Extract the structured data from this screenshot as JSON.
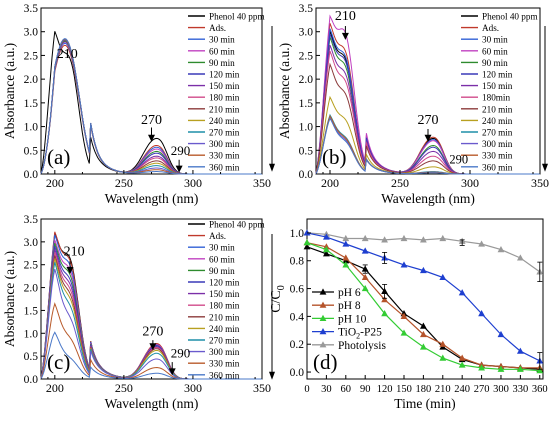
{
  "colors": {
    "phenol": "#000000",
    "ads": "#c0392b",
    "m30": "#2f5fd6",
    "m60": "#c040c0",
    "m90": "#2e8b2e",
    "m120": "#3a3ab8",
    "m150": "#7b2fa8",
    "m180": "#d04a8a",
    "m210": "#8b3a3a",
    "m240": "#b8a020",
    "m270": "#1f8fa8",
    "m300": "#6a5acd",
    "m330": "#b85a2a",
    "m360": "#4a78c8",
    "ph6": "#000000",
    "ph8": "#b5532a",
    "ph10": "#33cc33",
    "p25": "#1e3fd0",
    "photolysis": "#999999"
  },
  "chart_data": [
    {
      "panel": "(a)",
      "type": "line",
      "xlabel": "Wavelength (nm)",
      "ylabel": "Absorbance (a.u.)",
      "xlim": [
        190,
        350
      ],
      "ylim": [
        0,
        3.5
      ],
      "xticks": [
        "200",
        "250",
        "300",
        "350"
      ],
      "yticks": [
        "0.0",
        "0.5",
        "1.0",
        "1.5",
        "2.0",
        "2.5",
        "3.0",
        "3.5"
      ],
      "annotations": [
        "210",
        "270",
        "290"
      ],
      "series": [
        {
          "name": "Phenol 40 ppm",
          "color_key": "phenol",
          "shape": "phenol",
          "p": 2.8,
          "s": 2.25,
          "b": 0.6
        },
        {
          "name": "Ads.",
          "color_key": "ads",
          "shape": "dominant",
          "p": 3.1,
          "b": 0.48
        },
        {
          "name": "30 min",
          "color_key": "m30",
          "shape": "dominant",
          "p": 3.15,
          "b": 0.45
        },
        {
          "name": "60 min",
          "color_key": "m60",
          "shape": "dominant",
          "p": 3.18,
          "b": 0.42
        },
        {
          "name": "90 min",
          "color_key": "m90",
          "shape": "dominant",
          "p": 3.2,
          "b": 0.38
        },
        {
          "name": "120 min",
          "color_key": "m120",
          "shape": "dominant",
          "p": 3.22,
          "b": 0.35
        },
        {
          "name": "150 min",
          "color_key": "m150",
          "shape": "dominant",
          "p": 3.22,
          "b": 0.3
        },
        {
          "name": "180 min",
          "color_key": "m180",
          "shape": "dominant",
          "p": 3.23,
          "b": 0.27
        },
        {
          "name": "210 min",
          "color_key": "m210",
          "shape": "dominant",
          "p": 3.23,
          "b": 0.22
        },
        {
          "name": "240 min",
          "color_key": "m240",
          "shape": "dominant",
          "p": 3.24,
          "b": 0.18
        },
        {
          "name": "270 min",
          "color_key": "m270",
          "shape": "dominant",
          "p": 3.24,
          "b": 0.14
        },
        {
          "name": "300 min",
          "color_key": "m300",
          "shape": "dominant",
          "p": 3.25,
          "b": 0.1
        },
        {
          "name": "330 min",
          "color_key": "m330",
          "shape": "dominant",
          "p": 3.25,
          "b": 0.07
        },
        {
          "name": "360 min",
          "color_key": "m360",
          "shape": "dominant",
          "p": 3.26,
          "b": 0.04
        }
      ]
    },
    {
      "panel": "(b)",
      "type": "line",
      "xlabel": "Wavelength (nm)",
      "ylabel": "Absorbance (a.u.)",
      "xlim": [
        190,
        350
      ],
      "ylim": [
        0,
        3.5
      ],
      "xticks": [
        "200",
        "250",
        "300",
        "350"
      ],
      "yticks": [
        "0.0",
        "0.5",
        "1.0",
        "1.5",
        "2.0",
        "2.5",
        "3.0",
        "3.5"
      ],
      "annotations": [
        "210",
        "270",
        "290"
      ],
      "series": [
        {
          "name": "Phenol 40 ppm",
          "color_key": "phenol",
          "shape": "phenol",
          "p": 2.8,
          "s": 2.25,
          "b": 0.6
        },
        {
          "name": "Ads.",
          "color_key": "ads",
          "shape": "phenol",
          "p": 2.95,
          "s": 2.4,
          "b": 0.62
        },
        {
          "name": "30 min",
          "color_key": "m30",
          "shape": "phenol",
          "p": 2.85,
          "s": 2.3,
          "b": 0.58
        },
        {
          "name": "60 min",
          "color_key": "m60",
          "shape": "phenol",
          "p": 3.02,
          "s": 2.78,
          "b": 0.56
        },
        {
          "name": "90 min",
          "color_key": "m90",
          "shape": "phenol",
          "p": 2.7,
          "s": 2.1,
          "b": 0.48
        },
        {
          "name": "120 min",
          "color_key": "m120",
          "shape": "phenol",
          "p": 2.75,
          "s": 2.2,
          "b": 0.45
        },
        {
          "name": "150 min",
          "color_key": "m150",
          "shape": "phenol",
          "p": 2.55,
          "s": 1.95,
          "b": 0.38
        },
        {
          "name": "180min",
          "color_key": "m180",
          "shape": "phenol",
          "p": 2.45,
          "s": 1.8,
          "b": 0.3
        },
        {
          "name": "210 min",
          "color_key": "m210",
          "shape": "phenol",
          "p": 2.2,
          "s": 1.55,
          "b": 0.22
        },
        {
          "name": "240 min",
          "color_key": "m240",
          "shape": "phenol",
          "p": 1.55,
          "s": 1.05,
          "b": 0.12
        },
        {
          "name": "270 min",
          "color_key": "m270",
          "shape": "phenol",
          "p": 1.22,
          "s": 0.7,
          "b": 0.04
        },
        {
          "name": "300 min",
          "color_key": "m300",
          "shape": "phenol",
          "p": 1.18,
          "s": 0.65,
          "b": 0.03
        },
        {
          "name": "330 min",
          "color_key": "m330",
          "shape": "phenol",
          "p": 1.2,
          "s": 0.68,
          "b": 0.03
        },
        {
          "name": "360 min",
          "color_key": "m360",
          "shape": "phenol",
          "p": 1.16,
          "s": 0.62,
          "b": 0.02
        }
      ]
    },
    {
      "panel": "(c)",
      "type": "line",
      "xlabel": "Wavelength (nm)",
      "ylabel": "Absorbance (a.u.)",
      "xlim": [
        190,
        350
      ],
      "ylim": [
        0,
        3.5
      ],
      "xticks": [
        "200",
        "250",
        "300",
        "350"
      ],
      "yticks": [
        "0.0",
        "0.5",
        "1.0",
        "1.5",
        "2.0",
        "2.5",
        "3.0",
        "3.5"
      ],
      "annotations": [
        "210",
        "270",
        "290"
      ],
      "series": [
        {
          "name": "Phenol 40 ppm",
          "color_key": "phenol",
          "shape": "phenol",
          "p": 2.95,
          "s": 2.45,
          "b": 0.6
        },
        {
          "name": "Ads.",
          "color_key": "ads",
          "shape": "phenol",
          "p": 3.0,
          "s": 2.4,
          "b": 0.62
        },
        {
          "name": "30 min",
          "color_key": "m30",
          "shape": "phenol",
          "p": 2.95,
          "s": 2.3,
          "b": 0.6
        },
        {
          "name": "60 min",
          "color_key": "m60",
          "shape": "phenol",
          "p": 2.85,
          "s": 2.2,
          "b": 0.6
        },
        {
          "name": "90 min",
          "color_key": "m90",
          "shape": "phenol",
          "p": 2.8,
          "s": 2.1,
          "b": 0.58
        },
        {
          "name": "120 min",
          "color_key": "m120",
          "shape": "phenol",
          "p": 2.75,
          "s": 2.0,
          "b": 0.58
        },
        {
          "name": "150 min",
          "color_key": "m150",
          "shape": "phenol",
          "p": 2.7,
          "s": 1.9,
          "b": 0.56
        },
        {
          "name": "180 min",
          "color_key": "m180",
          "shape": "phenol",
          "p": 2.65,
          "s": 1.8,
          "b": 0.55
        },
        {
          "name": "210 min",
          "color_key": "m210",
          "shape": "phenol",
          "p": 2.6,
          "s": 1.7,
          "b": 0.53
        },
        {
          "name": "240 min",
          "color_key": "m240",
          "shape": "phenol",
          "p": 2.55,
          "s": 1.6,
          "b": 0.5
        },
        {
          "name": "270 min",
          "color_key": "m270",
          "shape": "phenol",
          "p": 2.5,
          "s": 1.45,
          "b": 0.45
        },
        {
          "name": "300 min",
          "color_key": "m300",
          "shape": "phenol",
          "p": 2.4,
          "s": 1.2,
          "b": 0.35
        },
        {
          "name": "330 min",
          "color_key": "m330",
          "shape": "phenol",
          "p": 1.65,
          "s": 0.8,
          "b": 0.2
        },
        {
          "name": "360 min",
          "color_key": "m360",
          "shape": "phenol",
          "p": 1.05,
          "s": 0.4,
          "b": 0.1
        }
      ]
    },
    {
      "panel": "(d)",
      "type": "line",
      "xlabel": "Time (min)",
      "ylabel": "C/C",
      "ylabel_sub": "0",
      "xlim": [
        0,
        365
      ],
      "ylim": [
        -0.05,
        1.1
      ],
      "xticks": [
        "0",
        "30",
        "60",
        "90",
        "120",
        "150",
        "180",
        "210",
        "240",
        "270",
        "300",
        "330",
        "360"
      ],
      "yticks": [
        "0.0",
        "0.2",
        "0.4",
        "0.6",
        "0.8",
        "1.0"
      ],
      "x": [
        0,
        30,
        60,
        90,
        120,
        150,
        180,
        210,
        240,
        270,
        300,
        330,
        360
      ],
      "series": [
        {
          "name": "pH 6",
          "color_key": "ph6",
          "marker": "triangle",
          "values": [
            0.9,
            0.85,
            0.8,
            0.74,
            0.58,
            0.42,
            0.33,
            0.18,
            0.09,
            0.05,
            0.04,
            0.03,
            0.02
          ]
        },
        {
          "name": "pH 8",
          "color_key": "ph8",
          "marker": "triangle",
          "values": [
            0.93,
            0.9,
            0.82,
            0.68,
            0.52,
            0.4,
            0.27,
            0.2,
            0.1,
            0.05,
            0.04,
            0.03,
            0.03
          ]
        },
        {
          "name": "pH 10",
          "color_key": "ph10",
          "marker": "triangle",
          "values": [
            0.93,
            0.88,
            0.77,
            0.6,
            0.42,
            0.28,
            0.18,
            0.1,
            0.05,
            0.03,
            0.02,
            0.02,
            0.01
          ]
        },
        {
          "name": "TiO2-P25",
          "color_key": "p25",
          "marker": "triangle",
          "values": [
            1.0,
            0.97,
            0.92,
            0.87,
            0.82,
            0.77,
            0.73,
            0.68,
            0.57,
            0.42,
            0.27,
            0.15,
            0.08
          ]
        },
        {
          "name": "Photolysis",
          "color_key": "photolysis",
          "marker": "triangle",
          "values": [
            1.0,
            0.99,
            0.96,
            0.96,
            0.95,
            0.96,
            0.95,
            0.96,
            0.94,
            0.92,
            0.88,
            0.82,
            0.72
          ]
        }
      ],
      "legend_labels": [
        "pH 6",
        "pH 8",
        "pH 10",
        "TiO",
        "2",
        "-P25",
        "Photolysis"
      ]
    }
  ]
}
